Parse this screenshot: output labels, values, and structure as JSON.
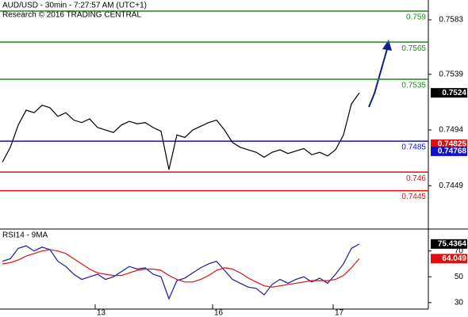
{
  "chart_data": [
    {
      "type": "line",
      "title": "AUD/USD - 30min - 7:27:57 AM (UTC+1)",
      "subtitle": "Research © 2016 TRADING CENTRAL",
      "xlim": [
        0,
        53.7
      ],
      "ylim": [
        0.7414,
        0.7599
      ],
      "yticks": [
        0.7583,
        0.7539,
        0.7494,
        0.7449
      ],
      "series": [
        {
          "name": "AUD/USD",
          "color": "#000000",
          "x": [
            0,
            1,
            2,
            3,
            4,
            5,
            6,
            7,
            8,
            9,
            10,
            11,
            12,
            13,
            14,
            15,
            16,
            17,
            18,
            19,
            20,
            21,
            22,
            23,
            24,
            25,
            26,
            27,
            28,
            29,
            30,
            31,
            32,
            33,
            34,
            35,
            36,
            37,
            38,
            39,
            40,
            41,
            42,
            43,
            44,
            45
          ],
          "values": [
            0.7468,
            0.748,
            0.7498,
            0.751,
            0.7508,
            0.7514,
            0.7512,
            0.7505,
            0.7508,
            0.7502,
            0.75,
            0.7503,
            0.7496,
            0.7494,
            0.7492,
            0.7498,
            0.7501,
            0.7499,
            0.75,
            0.7496,
            0.7493,
            0.7462,
            0.749,
            0.7488,
            0.7494,
            0.7497,
            0.75,
            0.7502,
            0.7494,
            0.7484,
            0.748,
            0.7478,
            0.7476,
            0.7472,
            0.7476,
            0.7478,
            0.7475,
            0.7477,
            0.7479,
            0.7474,
            0.7476,
            0.7473,
            0.7478,
            0.749,
            0.7515,
            0.7524
          ]
        }
      ],
      "levels": [
        {
          "value": 0.759,
          "color": "#1a8a1a"
        },
        {
          "value": 0.7565,
          "color": "#1a8a1a"
        },
        {
          "value": 0.7535,
          "color": "#1a8a1a"
        },
        {
          "value": 0.7485,
          "color": "#1010d0"
        },
        {
          "value": 0.746,
          "color": "#e01010"
        },
        {
          "value": 0.7445,
          "color": "#e01010"
        }
      ],
      "tags": [
        {
          "value": 0.7524,
          "color": "#000000"
        },
        {
          "value": 0.74825,
          "color": "#e01010"
        },
        {
          "value": 0.74768,
          "color": "#1010d0"
        }
      ]
    },
    {
      "type": "line",
      "title": "RSI14 - 9MA",
      "xlim": [
        0,
        53.7
      ],
      "ylim": [
        25,
        87
      ],
      "yticks": [
        70,
        50,
        30
      ],
      "xticks": [
        {
          "value": 11.7,
          "label": "13"
        },
        {
          "value": 26.5,
          "label": "16"
        },
        {
          "value": 41.7,
          "label": "17"
        }
      ],
      "series": [
        {
          "name": "RSI14",
          "color": "#1a1aa0",
          "x": [
            0,
            1,
            2,
            3,
            4,
            5,
            6,
            7,
            8,
            9,
            10,
            11,
            12,
            13,
            14,
            15,
            16,
            17,
            18,
            19,
            20,
            21,
            22,
            23,
            24,
            25,
            26,
            27,
            28,
            29,
            30,
            31,
            32,
            33,
            34,
            35,
            36,
            37,
            38,
            39,
            40,
            41,
            42,
            43,
            44,
            45
          ],
          "values": [
            62,
            64,
            72,
            74,
            70,
            73,
            71,
            62,
            58,
            52,
            48,
            50,
            52,
            48,
            50,
            54,
            58,
            56,
            57,
            52,
            50,
            33,
            47,
            49,
            53,
            57,
            60,
            62,
            55,
            48,
            45,
            42,
            41,
            36,
            44,
            48,
            45,
            48,
            50,
            46,
            49,
            45,
            52,
            60,
            72,
            75.4364
          ]
        },
        {
          "name": "9MA",
          "color": "#e01010",
          "x": [
            0,
            1,
            2,
            3,
            4,
            5,
            6,
            7,
            8,
            9,
            10,
            11,
            12,
            13,
            14,
            15,
            16,
            17,
            18,
            19,
            20,
            21,
            22,
            23,
            24,
            25,
            26,
            27,
            28,
            29,
            30,
            31,
            32,
            33,
            34,
            35,
            36,
            37,
            38,
            39,
            40,
            41,
            42,
            43,
            44,
            45
          ],
          "values": [
            60,
            61,
            63,
            66,
            68,
            70,
            71,
            70,
            68,
            64,
            60,
            56,
            53,
            52,
            51,
            51,
            53,
            55,
            56,
            56,
            55,
            51,
            48,
            46,
            46,
            48,
            51,
            55,
            57,
            56,
            53,
            49,
            46,
            43,
            42,
            43,
            44,
            45,
            46,
            47,
            47,
            47,
            48,
            51,
            57,
            64.049
          ]
        }
      ],
      "tags": [
        {
          "value": 75.4364,
          "color": "#000000"
        },
        {
          "value": 64.049,
          "color": "#e01010"
        }
      ]
    }
  ]
}
